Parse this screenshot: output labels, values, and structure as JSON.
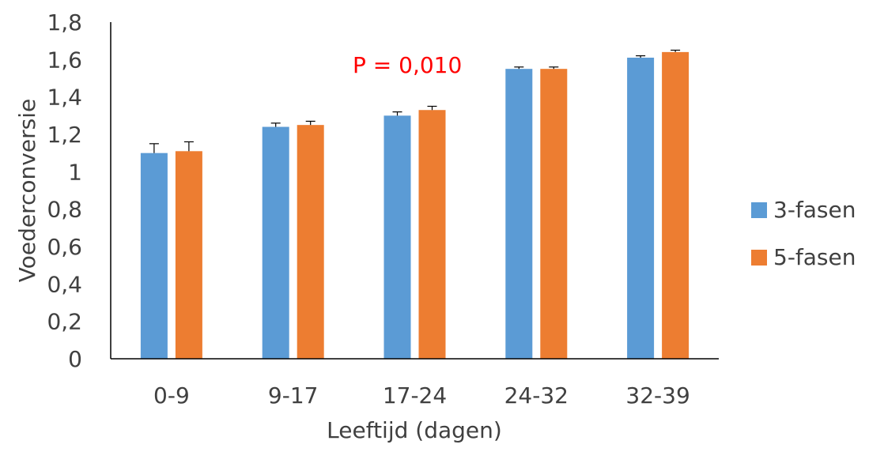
{
  "chart_data": {
    "type": "bar",
    "title": "",
    "xlabel": "Leeftijd (dagen)",
    "ylabel": "Voederconversie",
    "categories": [
      "0-9",
      "9-17",
      "17-24",
      "24-32",
      "32-39"
    ],
    "ylim": [
      0,
      1.8
    ],
    "ytick_step": 0.2,
    "y_tick_labels": [
      "0",
      "0,2",
      "0,4",
      "0,6",
      "0,8",
      "1",
      "1,2",
      "1,4",
      "1,6",
      "1,8"
    ],
    "grid": false,
    "legend_position": "right",
    "series": [
      {
        "name": "3-fasen",
        "color": "#5B9BD5",
        "values": [
          1.1,
          1.24,
          1.3,
          1.55,
          1.61
        ],
        "errors": [
          0.05,
          0.02,
          0.02,
          0.01,
          0.01
        ]
      },
      {
        "name": "5-fasen",
        "color": "#ED7D31",
        "values": [
          1.11,
          1.25,
          1.33,
          1.55,
          1.64
        ],
        "errors": [
          0.05,
          0.02,
          0.02,
          0.01,
          0.01
        ]
      }
    ],
    "annotations": [
      {
        "text": "P = 0,010",
        "color": "#FF0000",
        "category": "17-24"
      }
    ]
  }
}
